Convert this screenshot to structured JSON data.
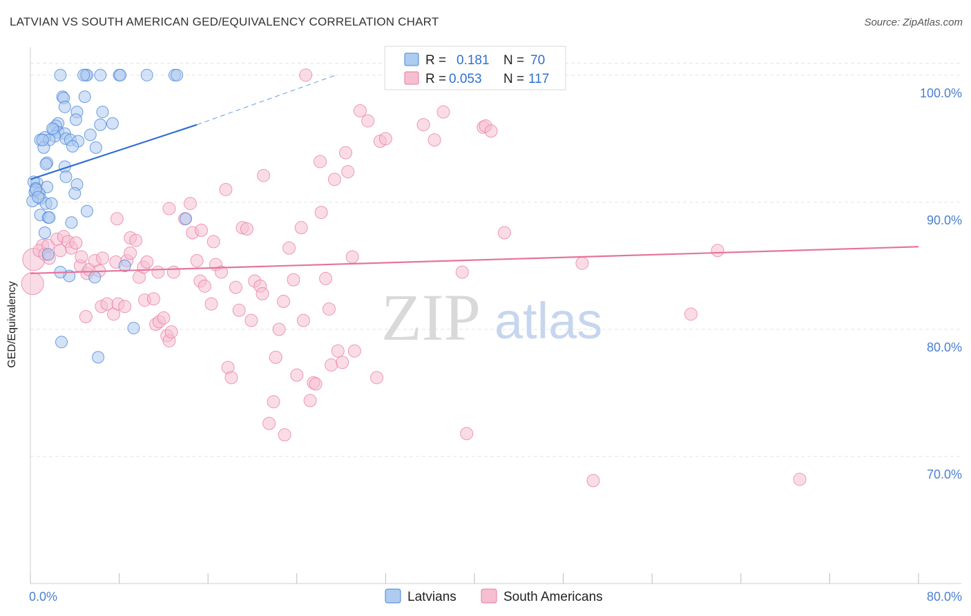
{
  "header": {
    "title": "LATVIAN VS SOUTH AMERICAN GED/EQUIVALENCY CORRELATION CHART",
    "source": "Source: ZipAtlas.com"
  },
  "colors": {
    "blue": "#4a86d8",
    "blue_fill": "#aecbf0",
    "blue_line": "#2f6fd0",
    "pink": "#e87aa0",
    "pink_fill": "#f6bfd1",
    "pink_line": "#e5739b",
    "axis_text": "#4a7fd0",
    "grid": "#e3e3e3"
  },
  "watermark": {
    "zip": "ZIP",
    "atlas": "atlas"
  },
  "legend": {
    "rows": [
      {
        "r_label": "R =",
        "r_value": "0.181",
        "n_label": "N =",
        "n_value": "70"
      },
      {
        "r_label": "R =",
        "r_value": "0.053",
        "n_label": "N =",
        "n_value": "117"
      }
    ]
  },
  "bottom_legend": {
    "items": [
      {
        "label": "Latvians"
      },
      {
        "label": "South Americans"
      }
    ]
  },
  "chart_data": {
    "type": "scatter",
    "title": "LATVIAN VS SOUTH AMERICAN GED/EQUIVALENCY CORRELATION CHART",
    "xlabel": "",
    "ylabel": "GED/Equivalency",
    "xlim": [
      0,
      80
    ],
    "ylim": [
      60,
      102
    ],
    "x_tick_labels": [
      "0.0%",
      "80.0%"
    ],
    "y_ticks": [
      70,
      80,
      90,
      100
    ],
    "y_tick_labels": [
      "70.0%",
      "80.0%",
      "90.0%",
      "100.0%"
    ],
    "grid": true,
    "series": [
      {
        "name": "Latvians",
        "R": 0.181,
        "N": 70,
        "trend": {
          "x_start": 0,
          "y_start": 91.8,
          "x_solid_end": 15,
          "y_solid_end": 96.1,
          "x_end": 27.5,
          "y_end": 100.0
        },
        "points": [
          [
            5.0,
            100.0
          ],
          [
            5.1,
            100.0
          ],
          [
            4.8,
            100.0
          ],
          [
            6.3,
            100.0
          ],
          [
            8.0,
            100.0
          ],
          [
            8.1,
            100.0
          ],
          [
            10.5,
            100.0
          ],
          [
            13.0,
            100.0
          ],
          [
            13.2,
            100.0
          ],
          [
            2.7,
            100.0
          ],
          [
            2.9,
            98.3
          ],
          [
            3.0,
            98.2
          ],
          [
            4.9,
            98.3
          ],
          [
            3.1,
            97.5
          ],
          [
            4.2,
            97.1
          ],
          [
            6.5,
            97.1
          ],
          [
            4.1,
            96.5
          ],
          [
            2.5,
            96.2
          ],
          [
            7.4,
            96.2
          ],
          [
            6.3,
            96.1
          ],
          [
            2.3,
            96.0
          ],
          [
            2.1,
            95.7
          ],
          [
            2.5,
            95.5
          ],
          [
            3.1,
            95.4
          ],
          [
            2.2,
            95.2
          ],
          [
            1.3,
            95.1
          ],
          [
            0.9,
            94.9
          ],
          [
            1.7,
            94.9
          ],
          [
            3.2,
            95.0
          ],
          [
            3.6,
            94.9
          ],
          [
            4.3,
            94.8
          ],
          [
            5.4,
            95.3
          ],
          [
            1.2,
            94.3
          ],
          [
            3.8,
            94.4
          ],
          [
            5.9,
            94.3
          ],
          [
            1.5,
            93.1
          ],
          [
            1.4,
            93.0
          ],
          [
            3.1,
            92.8
          ],
          [
            3.2,
            92.0
          ],
          [
            0.6,
            91.5
          ],
          [
            0.3,
            91.6
          ],
          [
            0.5,
            91.1
          ],
          [
            1.5,
            91.2
          ],
          [
            4.2,
            91.4
          ],
          [
            0.4,
            90.8
          ],
          [
            0.8,
            90.7
          ],
          [
            0.9,
            90.3
          ],
          [
            0.2,
            90.1
          ],
          [
            1.4,
            89.9
          ],
          [
            1.9,
            89.9
          ],
          [
            4.0,
            90.7
          ],
          [
            0.9,
            89.0
          ],
          [
            1.6,
            88.8
          ],
          [
            5.1,
            89.3
          ],
          [
            1.7,
            88.8
          ],
          [
            3.7,
            88.4
          ],
          [
            1.3,
            87.6
          ],
          [
            14.0,
            88.7
          ],
          [
            1.6,
            85.9
          ],
          [
            3.5,
            84.2
          ],
          [
            2.7,
            84.5
          ],
          [
            8.5,
            85.0
          ],
          [
            5.8,
            84.1
          ],
          [
            9.3,
            80.1
          ],
          [
            2.8,
            79.0
          ],
          [
            6.1,
            77.8
          ],
          [
            0.5,
            91.0
          ],
          [
            0.7,
            90.4
          ],
          [
            2.0,
            95.8
          ],
          [
            1.1,
            94.9
          ]
        ]
      },
      {
        "name": "South Americans",
        "R": 0.053,
        "N": 117,
        "trend": {
          "x_start": 0,
          "y_start": 84.4,
          "x_end": 80,
          "y_end": 86.5
        },
        "points": [
          [
            0.3,
            85.5
          ],
          [
            0.2,
            83.6
          ],
          [
            1.1,
            86.6
          ],
          [
            0.8,
            86.2
          ],
          [
            1.3,
            85.9
          ],
          [
            1.6,
            86.6
          ],
          [
            1.7,
            85.6
          ],
          [
            2.4,
            87.1
          ],
          [
            2.7,
            86.2
          ],
          [
            3.0,
            87.3
          ],
          [
            3.4,
            86.9
          ],
          [
            3.7,
            86.4
          ],
          [
            4.1,
            86.8
          ],
          [
            4.5,
            85.0
          ],
          [
            4.6,
            85.7
          ],
          [
            5.1,
            84.4
          ],
          [
            5.3,
            84.7
          ],
          [
            5.8,
            85.4
          ],
          [
            6.2,
            84.6
          ],
          [
            6.5,
            85.6
          ],
          [
            5.0,
            81.0
          ],
          [
            6.4,
            81.8
          ],
          [
            6.9,
            82.0
          ],
          [
            7.5,
            81.2
          ],
          [
            7.9,
            82.0
          ],
          [
            8.5,
            81.8
          ],
          [
            7.7,
            85.3
          ],
          [
            8.7,
            85.4
          ],
          [
            9.0,
            86.0
          ],
          [
            9.0,
            87.2
          ],
          [
            9.5,
            87.0
          ],
          [
            9.8,
            84.1
          ],
          [
            10.2,
            84.9
          ],
          [
            10.5,
            85.3
          ],
          [
            10.3,
            82.3
          ],
          [
            11.1,
            82.4
          ],
          [
            11.3,
            80.4
          ],
          [
            11.6,
            80.6
          ],
          [
            12.0,
            80.9
          ],
          [
            12.3,
            79.5
          ],
          [
            12.5,
            79.1
          ],
          [
            12.7,
            79.8
          ],
          [
            12.9,
            84.5
          ],
          [
            11.5,
            84.5
          ],
          [
            7.8,
            88.7
          ],
          [
            12.5,
            89.5
          ],
          [
            14.4,
            89.9
          ],
          [
            14.6,
            87.6
          ],
          [
            13.9,
            88.7
          ],
          [
            15.4,
            87.8
          ],
          [
            15.0,
            85.4
          ],
          [
            15.3,
            83.8
          ],
          [
            15.7,
            83.4
          ],
          [
            16.3,
            82.0
          ],
          [
            16.5,
            86.9
          ],
          [
            16.7,
            85.1
          ],
          [
            17.2,
            84.5
          ],
          [
            17.6,
            91.0
          ],
          [
            17.8,
            77.0
          ],
          [
            18.1,
            76.2
          ],
          [
            18.5,
            83.3
          ],
          [
            18.8,
            81.5
          ],
          [
            19.1,
            88.0
          ],
          [
            19.5,
            87.9
          ],
          [
            19.9,
            80.7
          ],
          [
            20.2,
            83.8
          ],
          [
            20.7,
            83.4
          ],
          [
            20.9,
            82.8
          ],
          [
            21.0,
            92.1
          ],
          [
            21.5,
            72.6
          ],
          [
            21.9,
            74.3
          ],
          [
            22.1,
            77.8
          ],
          [
            22.4,
            80.0
          ],
          [
            22.8,
            82.2
          ],
          [
            22.9,
            71.7
          ],
          [
            23.3,
            86.4
          ],
          [
            23.7,
            83.9
          ],
          [
            24.0,
            76.4
          ],
          [
            24.4,
            88.0
          ],
          [
            24.6,
            80.7
          ],
          [
            25.2,
            74.4
          ],
          [
            25.5,
            75.8
          ],
          [
            25.7,
            75.7
          ],
          [
            26.1,
            93.2
          ],
          [
            26.2,
            89.2
          ],
          [
            26.6,
            84.0
          ],
          [
            26.9,
            81.6
          ],
          [
            27.1,
            77.2
          ],
          [
            27.4,
            91.8
          ],
          [
            27.7,
            78.3
          ],
          [
            28.1,
            77.4
          ],
          [
            28.4,
            93.9
          ],
          [
            28.6,
            92.4
          ],
          [
            29.0,
            85.7
          ],
          [
            29.2,
            78.3
          ],
          [
            29.7,
            97.2
          ],
          [
            30.4,
            96.4
          ],
          [
            31.2,
            76.2
          ],
          [
            31.5,
            94.8
          ],
          [
            32.0,
            95.0
          ],
          [
            32.7,
            100.0
          ],
          [
            33.3,
            100.0
          ],
          [
            35.4,
            96.1
          ],
          [
            36.4,
            94.9
          ],
          [
            37.2,
            97.1
          ],
          [
            38.9,
            84.5
          ],
          [
            39.3,
            71.8
          ],
          [
            40.8,
            95.9
          ],
          [
            41.0,
            96.0
          ],
          [
            41.5,
            95.6
          ],
          [
            42.7,
            87.6
          ],
          [
            49.7,
            85.2
          ],
          [
            50.7,
            68.1
          ],
          [
            59.5,
            81.2
          ],
          [
            61.9,
            86.2
          ],
          [
            69.3,
            68.2
          ],
          [
            24.8,
            100.0
          ]
        ]
      }
    ]
  }
}
